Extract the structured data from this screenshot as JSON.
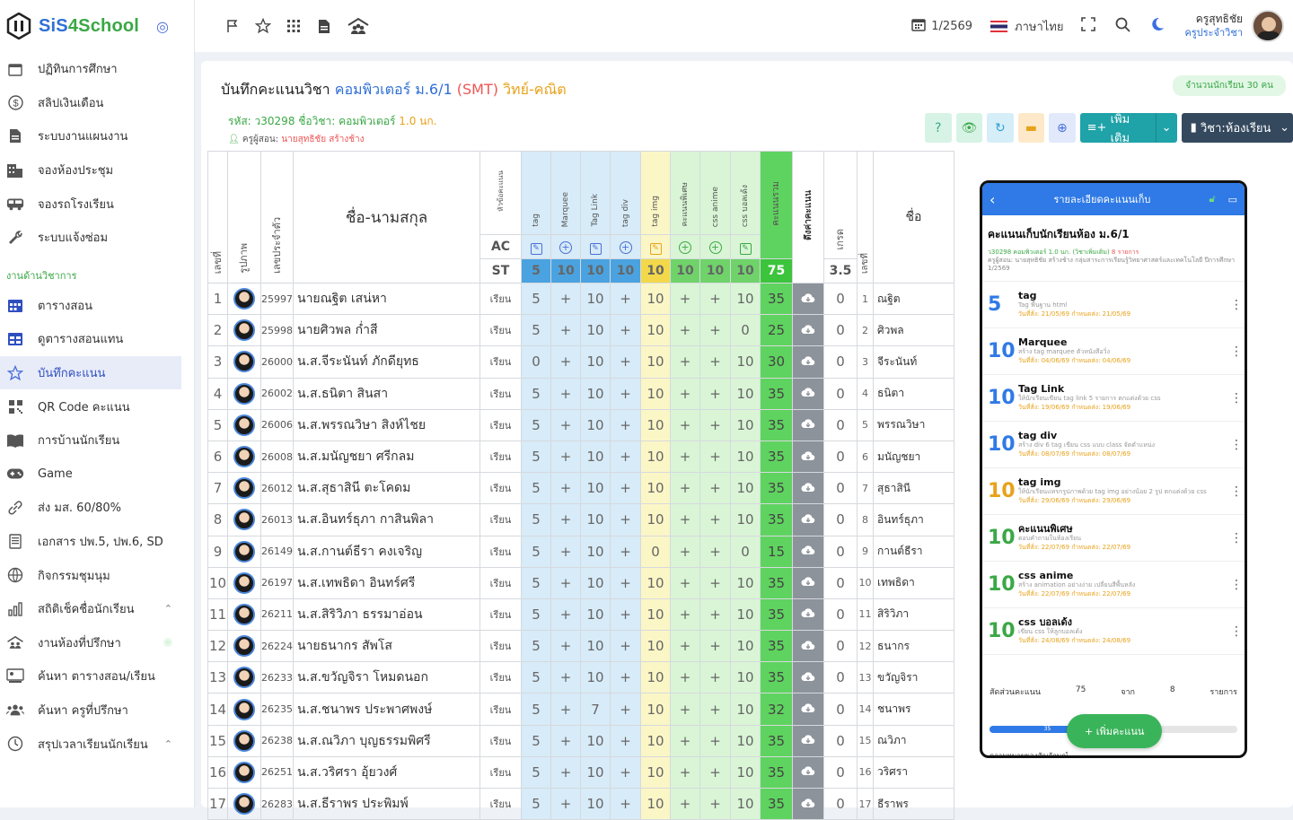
{
  "app": {
    "name_a": "SiS",
    "name_b": "4School"
  },
  "sidebar": {
    "items_top": [
      {
        "label": "ปฏิทินการศึกษา",
        "icon": "calendar-icon"
      },
      {
        "label": "สลิปเงินเดือน",
        "icon": "dollar-icon"
      },
      {
        "label": "ระบบงานแผนงาน",
        "icon": "document-icon"
      },
      {
        "label": "จองห้องประชุม",
        "icon": "building-icon"
      },
      {
        "label": "จองรถโรงเรียน",
        "icon": "bus-icon"
      },
      {
        "label": "ระบบแจ้งซ่อม",
        "icon": "wrench-icon"
      }
    ],
    "section_label": "งานด้านวิชาการ",
    "items_academic": [
      {
        "label": "ตารางสอน",
        "icon": "calendar-grid-icon",
        "color": "#2f4fbf"
      },
      {
        "label": "ดูตารางสอนแทน",
        "icon": "table-icon",
        "color": "#2f4fbf"
      },
      {
        "label": "บันทึกคะแนน",
        "icon": "star-icon",
        "active": true,
        "color": "#e8a21a"
      },
      {
        "label": "QR Code คะแนน",
        "icon": "qr-icon"
      },
      {
        "label": "การบ้านนักเรียน",
        "icon": "book-icon"
      },
      {
        "label": "Game",
        "icon": "gamepad-icon"
      },
      {
        "label": "ส่ง มส. 60/80%",
        "icon": "link-icon"
      },
      {
        "label": "เอกสาร ปพ.5, ปพ.6, SD",
        "icon": "file-icon"
      },
      {
        "label": "กิจกรรมชุมนุม",
        "icon": "globe-icon"
      },
      {
        "label": "สถิติเช็คชื่อนักเรียน",
        "icon": "bar-chart-icon",
        "chevron": true
      },
      {
        "label": "งานห้องที่ปรึกษา",
        "icon": "users-roof-icon",
        "dot": true
      },
      {
        "label": "ค้นหา ตารางสอน/เรียน",
        "icon": "search-person-icon"
      },
      {
        "label": "ค้นหา ครูที่ปรึกษา",
        "icon": "group-icon"
      },
      {
        "label": "สรุปเวลาเรียนนักเรียน",
        "icon": "clock-icon",
        "chevron": true
      }
    ]
  },
  "topbar": {
    "term": "1/2569",
    "language": "ภาษาไทย",
    "user_name": "ครูสุทธิชัย",
    "user_role": "ครูประจำวิชา"
  },
  "page": {
    "title_prefix": "บันทึกคะแนนวิชา",
    "subject": "คอมพิวเตอร์ ม.6/1",
    "code": "(SMT)",
    "dept": "วิทย์-คณิต",
    "student_count": "จำนวนนักเรียน 30 คน",
    "meta_code": "รหัส: ว30298 ชื่อวิชา: คอมพิวเตอร์",
    "meta_credit": "1.0 นก.",
    "teacher_label": "ครูผู้สอน:",
    "teacher_name": "นายสุทธิชัย สร้างช้าง",
    "btn_add": "เพิ่มเติม",
    "btn_subject": "วิชา:ห้องเรียน"
  },
  "table": {
    "headers": {
      "no": "เลขที่",
      "photo": "รูปภาพ",
      "sid": "เลขประจำตัว",
      "name": "ชื่อ-นามสกุล",
      "status": "หัวข้อคะแนน",
      "total": "คะแนนรวม",
      "cloud": "ดึงค่าคะแนน",
      "grade": "เกรด",
      "no2": "เลขที่",
      "nick": "ชื่อ",
      "ac": "AC",
      "st": "ST",
      "grade_max": "3.5"
    },
    "columns": [
      {
        "label": "tag",
        "max": "5",
        "group": "blue"
      },
      {
        "label": "Marquee",
        "max": "10",
        "group": "blue"
      },
      {
        "label": "Tag Link",
        "max": "10",
        "group": "blue"
      },
      {
        "label": "tag div",
        "max": "10",
        "group": "blue"
      },
      {
        "label": "tag img",
        "max": "10",
        "group": "yel"
      },
      {
        "label": "คะแนนพิเศษ",
        "max": "10",
        "group": "grn"
      },
      {
        "label": "css anime",
        "max": "10",
        "group": "grn"
      },
      {
        "label": "css บอลเด้ง",
        "max": "10",
        "group": "grn"
      }
    ],
    "total_max": "75",
    "rows": [
      {
        "no": "1",
        "sid": "25997",
        "name": "นายณฐิต เสน่หา",
        "status": "เรียน",
        "s": [
          "5",
          "+",
          "10",
          "+",
          "10",
          "+",
          "+",
          "10"
        ],
        "total": "35",
        "grade": "0",
        "nick": "ณฐิต"
      },
      {
        "no": "2",
        "sid": "25998",
        "name": "นายศิวพล ก่ำสี",
        "status": "เรียน",
        "s": [
          "5",
          "+",
          "10",
          "+",
          "10",
          "+",
          "+",
          "0"
        ],
        "total": "25",
        "grade": "0",
        "nick": "ศิวพล"
      },
      {
        "no": "3",
        "sid": "26000",
        "name": "น.ส.จีระนันท์ ภักดียุทธ",
        "status": "เรียน",
        "s": [
          "0",
          "+",
          "10",
          "+",
          "10",
          "+",
          "+",
          "10"
        ],
        "total": "30",
        "grade": "0",
        "nick": "จีระนันท์"
      },
      {
        "no": "4",
        "sid": "26002",
        "name": "น.ส.ธนิตา สินสา",
        "status": "เรียน",
        "s": [
          "5",
          "+",
          "10",
          "+",
          "10",
          "+",
          "+",
          "10"
        ],
        "total": "35",
        "grade": "0",
        "nick": "ธนิตา"
      },
      {
        "no": "5",
        "sid": "26006",
        "name": "น.ส.พรรณวิษา สิงห์ไชย",
        "status": "เรียน",
        "s": [
          "5",
          "+",
          "10",
          "+",
          "10",
          "+",
          "+",
          "10"
        ],
        "total": "35",
        "grade": "0",
        "nick": "พรรณวิษา"
      },
      {
        "no": "6",
        "sid": "26008",
        "name": "น.ส.มนัญชยา ศรีกลม",
        "status": "เรียน",
        "s": [
          "5",
          "+",
          "10",
          "+",
          "10",
          "+",
          "+",
          "10"
        ],
        "total": "35",
        "grade": "0",
        "nick": "มนัญชยา"
      },
      {
        "no": "7",
        "sid": "26012",
        "name": "น.ส.สุธาสินี ตะโคดม",
        "status": "เรียน",
        "s": [
          "5",
          "+",
          "10",
          "+",
          "10",
          "+",
          "+",
          "10"
        ],
        "total": "35",
        "grade": "0",
        "nick": "สุธาสินี"
      },
      {
        "no": "8",
        "sid": "26013",
        "name": "น.ส.อินทร์ธุภา กาสินพิลา",
        "status": "เรียน",
        "s": [
          "5",
          "+",
          "10",
          "+",
          "10",
          "+",
          "+",
          "10"
        ],
        "total": "35",
        "grade": "0",
        "nick": "อินทร์ธุภา"
      },
      {
        "no": "9",
        "sid": "26149",
        "name": "น.ส.กานต์ธีรา คงเจริญ",
        "status": "เรียน",
        "s": [
          "5",
          "+",
          "10",
          "+",
          "0",
          "+",
          "+",
          "0"
        ],
        "total": "15",
        "grade": "0",
        "nick": "กานต์ธีรา"
      },
      {
        "no": "10",
        "sid": "26197",
        "name": "น.ส.เทพธิดา อินทร์ศรี",
        "status": "เรียน",
        "s": [
          "5",
          "+",
          "10",
          "+",
          "10",
          "+",
          "+",
          "10"
        ],
        "total": "35",
        "grade": "0",
        "nick": "เทพธิดา"
      },
      {
        "no": "11",
        "sid": "26211",
        "name": "น.ส.สิริวิภา ธรรมาอ่อน",
        "status": "เรียน",
        "s": [
          "5",
          "+",
          "10",
          "+",
          "10",
          "+",
          "+",
          "10"
        ],
        "total": "35",
        "grade": "0",
        "nick": "สิริวิภา"
      },
      {
        "no": "12",
        "sid": "26224",
        "name": "นายธนากร สัพโส",
        "status": "เรียน",
        "s": [
          "5",
          "+",
          "10",
          "+",
          "10",
          "+",
          "+",
          "10"
        ],
        "total": "35",
        "grade": "0",
        "nick": "ธนากร"
      },
      {
        "no": "13",
        "sid": "26233",
        "name": "น.ส.ขวัญจิรา โหมดนอก",
        "status": "เรียน",
        "s": [
          "5",
          "+",
          "10",
          "+",
          "10",
          "+",
          "+",
          "10"
        ],
        "total": "35",
        "grade": "0",
        "nick": "ขวัญจิรา"
      },
      {
        "no": "14",
        "sid": "26235",
        "name": "น.ส.ชนาพร ประพาศพงษ์",
        "status": "เรียน",
        "s": [
          "5",
          "+",
          "7",
          "+",
          "10",
          "+",
          "+",
          "10"
        ],
        "total": "32",
        "grade": "0",
        "nick": "ชนาพร"
      },
      {
        "no": "15",
        "sid": "26238",
        "name": "น.ส.ณวิภา บุญธรรมพิศรี",
        "status": "เรียน",
        "s": [
          "5",
          "+",
          "10",
          "+",
          "10",
          "+",
          "+",
          "10"
        ],
        "total": "35",
        "grade": "0",
        "nick": "ณวิภา"
      },
      {
        "no": "16",
        "sid": "26251",
        "name": "น.ส.วริศรา อุ้ยวงศ์",
        "status": "เรียน",
        "s": [
          "5",
          "+",
          "10",
          "+",
          "10",
          "+",
          "+",
          "10"
        ],
        "total": "35",
        "grade": "0",
        "nick": "วริศรา"
      },
      {
        "no": "17",
        "sid": "26283",
        "name": "น.ส.ธีราพร ประพิมพ์",
        "status": "เรียน",
        "s": [
          "5",
          "+",
          "10",
          "+",
          "10",
          "+",
          "+",
          "10"
        ],
        "total": "35",
        "grade": "0",
        "nick": "ธีราพร"
      }
    ]
  },
  "phone": {
    "header": "รายละเอียดคะแนนเก็บ",
    "title": "คะแนนเก็บนักเรียนห้อง ม.6/1",
    "info_code": "ว30298 คอมพิวเตอร์ 1.0 นก.",
    "info_extra": "(วิชาเพิ่มเติม)",
    "info_count": "8 รายการ",
    "info_teacher": "ครูผู้สอน: นายสุทธิชัย สร้างช้าง กลุ่มสาระการเรียนรู้วิทยาศาสตร์และเทคโนโลยี ปีการศึกษา 1/2569",
    "items": [
      {
        "score": "5",
        "color": "b",
        "name": "tag",
        "desc": "Tag พื้นฐาน html",
        "date": "วันที่สั่ง: 21/05/69 กำหนดส่ง: 21/05/69"
      },
      {
        "score": "10",
        "color": "b",
        "name": "Marquee",
        "desc": "สร้าง tag marquee ตัวหนังสือวิ่ง",
        "date": "วันที่สั่ง: 04/06/69 กำหนดส่ง: 04/06/69"
      },
      {
        "score": "10",
        "color": "b",
        "name": "Tag Link",
        "desc": "ให้นักเรียนเขียน tag link 5 รายการ ตกแต่งด้วย css",
        "date": "วันที่สั่ง: 19/06/69 กำหนดส่ง: 19/06/69"
      },
      {
        "score": "10",
        "color": "b",
        "name": "tag div",
        "desc": "สร้าง div 6 tag เขียน css แบบ class จัดตำแหน่ง",
        "date": "วันที่สั่ง: 08/07/69 กำหนดส่ง: 08/07/69"
      },
      {
        "score": "10",
        "color": "o",
        "name": "tag img",
        "desc": "ให้นักเรียนแทรกรูปภาพด้วย tag img อย่างน้อย 2 รูป ตกแต่งด้วย css",
        "date": "วันที่สั่ง: 29/06/69 กำหนดส่ง: 29/06/69"
      },
      {
        "score": "10",
        "color": "g",
        "name": "คะแนนพิเศษ",
        "desc": "ตอบคำถามในห้องเรียน",
        "date": "วันที่สั่ง: 22/07/69 กำหนดส่ง: 22/07/69"
      },
      {
        "score": "10",
        "color": "g",
        "name": "css anime",
        "desc": "สร้าง animation อย่างง่าย เปลี่ยนสีพื้นหลัง",
        "date": "วันที่สั่ง: 22/07/69 กำหนดส่ง: 22/07/69"
      },
      {
        "score": "10",
        "color": "g",
        "name": "css บอลเด้ง",
        "desc": "เขียน css ให้ลูกบอลเด้ง",
        "date": "วันที่สั่ง: 24/08/69 กำหนดส่ง: 24/08/69"
      }
    ],
    "ratio_label": "สัดส่วนคะแนน",
    "ratio_total": "75",
    "ratio_from": "จาก",
    "ratio_count": "8",
    "ratio_unit": "รายการ",
    "progress_value": "35",
    "progress_fraction": 0.467,
    "add_button": "+ เพิ่มคะแนน",
    "footer_cut": "ความหมายของสัญลักษณ์"
  }
}
